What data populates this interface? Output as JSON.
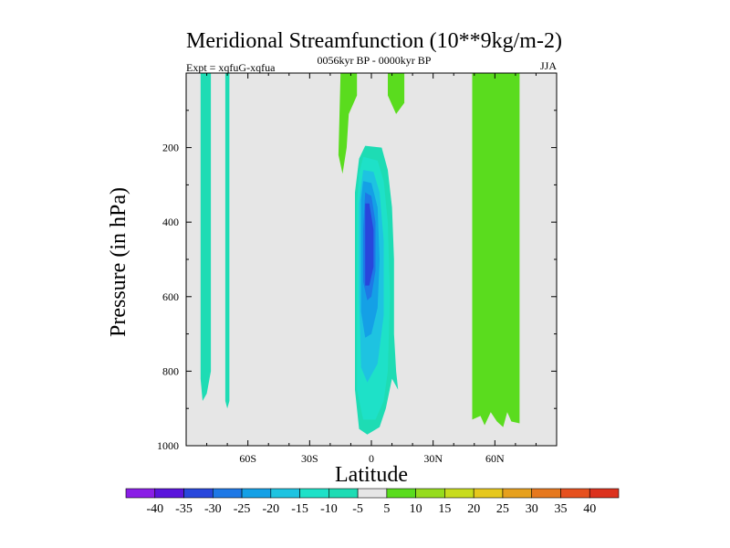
{
  "chart_data": {
    "type": "contour",
    "title": "Meridional Streamfunction (10**9kg/m-2)",
    "subtitle_left": "Expt = xqfuG-xqfua",
    "subtitle_center": "0056kyr BP - 0000kyr BP",
    "subtitle_right": "JJA",
    "xlabel": "Latitude",
    "ylabel": "Pressure (in hPa)",
    "xlim": [
      -90,
      90
    ],
    "ylim": [
      1000,
      0
    ],
    "y_inverted": true,
    "x_ticks": [
      {
        "value": -60,
        "label": "60S"
      },
      {
        "value": -30,
        "label": "30S"
      },
      {
        "value": 0,
        "label": "0"
      },
      {
        "value": 30,
        "label": "30N"
      },
      {
        "value": 60,
        "label": "60N"
      }
    ],
    "y_ticks": [
      {
        "value": 200,
        "label": "200"
      },
      {
        "value": 400,
        "label": "400"
      },
      {
        "value": 600,
        "label": "600"
      },
      {
        "value": 800,
        "label": "800"
      },
      {
        "value": 1000,
        "label": "1000"
      }
    ],
    "background_color": "#e6e6e6",
    "colorbar": {
      "levels": [
        -40,
        -35,
        -30,
        -25,
        -20,
        -15,
        -10,
        -5,
        5,
        10,
        15,
        20,
        25,
        30,
        35,
        40
      ],
      "labels": [
        "-40",
        "-35",
        "-30",
        "-25",
        "-20",
        "-15",
        "-10",
        "-5",
        "5",
        "10",
        "15",
        "20",
        "25",
        "30",
        "35",
        "40"
      ],
      "colors": [
        "#8a1ee6",
        "#5a14dc",
        "#2846dc",
        "#1e78e6",
        "#14a0e6",
        "#1ec3e1",
        "#1ee1c8",
        "#1edcb4",
        "#e6e6e6",
        "#5adc1e",
        "#96dc1e",
        "#c8dc1e",
        "#e6c81e",
        "#e6a01e",
        "#e6781e",
        "#e6501e",
        "#dc321e"
      ]
    },
    "regions": [
      {
        "name": "sh-polar-band-1",
        "value": -5,
        "color": "#1edcb4",
        "polygon": [
          [
            -83,
            0
          ],
          [
            -78,
            0
          ],
          [
            -78,
            800
          ],
          [
            -80,
            860
          ],
          [
            -82,
            880
          ],
          [
            -83,
            820
          ]
        ]
      },
      {
        "name": "sh-polar-band-2",
        "value": -5,
        "color": "#1edcb4",
        "polygon": [
          [
            -71,
            0
          ],
          [
            -69,
            0
          ],
          [
            -69,
            880
          ],
          [
            -70,
            900
          ],
          [
            -71,
            880
          ]
        ]
      },
      {
        "name": "deep-cell-minus5",
        "value": -5,
        "color": "#1edcb4",
        "polygon": [
          [
            -3,
            195
          ],
          [
            5,
            200
          ],
          [
            8,
            260
          ],
          [
            10,
            360
          ],
          [
            11,
            500
          ],
          [
            11,
            700
          ],
          [
            12,
            800
          ],
          [
            13,
            850
          ],
          [
            10,
            820
          ],
          [
            7,
            900
          ],
          [
            4,
            950
          ],
          [
            -2,
            970
          ],
          [
            -6,
            955
          ],
          [
            -8,
            850
          ],
          [
            -8,
            700
          ],
          [
            -8,
            500
          ],
          [
            -8,
            320
          ],
          [
            -6,
            230
          ]
        ]
      },
      {
        "name": "deep-cell-minus10",
        "value": -10,
        "color": "#1ee1c8",
        "polygon": [
          [
            -4,
            225
          ],
          [
            3,
            235
          ],
          [
            6,
            290
          ],
          [
            8,
            400
          ],
          [
            9,
            600
          ],
          [
            8,
            800
          ],
          [
            6,
            880
          ],
          [
            2,
            930
          ],
          [
            -4,
            930
          ],
          [
            -7,
            850
          ],
          [
            -7,
            600
          ],
          [
            -7,
            350
          ],
          [
            -6,
            270
          ]
        ]
      },
      {
        "name": "deep-cell-minus15",
        "value": -15,
        "color": "#1ec3e1",
        "polygon": [
          [
            -4,
            260
          ],
          [
            1,
            265
          ],
          [
            4,
            320
          ],
          [
            6,
            450
          ],
          [
            6,
            650
          ],
          [
            3,
            780
          ],
          [
            -2,
            830
          ],
          [
            -5,
            790
          ],
          [
            -6,
            600
          ],
          [
            -6,
            350
          ]
        ]
      },
      {
        "name": "deep-cell-minus20",
        "value": -20,
        "color": "#14a0e6",
        "polygon": [
          [
            -4,
            290
          ],
          [
            0,
            295
          ],
          [
            3,
            360
          ],
          [
            4,
            500
          ],
          [
            3,
            630
          ],
          [
            0,
            700
          ],
          [
            -3,
            710
          ],
          [
            -5,
            640
          ],
          [
            -5,
            450
          ],
          [
            -5,
            340
          ]
        ]
      },
      {
        "name": "deep-cell-minus25",
        "value": -25,
        "color": "#1e78e6",
        "polygon": [
          [
            -3,
            320
          ],
          [
            0,
            330
          ],
          [
            2,
            400
          ],
          [
            2,
            530
          ],
          [
            0,
            600
          ],
          [
            -2,
            610
          ],
          [
            -4,
            560
          ],
          [
            -4,
            420
          ]
        ]
      },
      {
        "name": "deep-cell-minus30",
        "value": -30,
        "color": "#2846dc",
        "polygon": [
          [
            -3,
            350
          ],
          [
            -1,
            350
          ],
          [
            1,
            420
          ],
          [
            1,
            520
          ],
          [
            -1,
            570
          ],
          [
            -3,
            570
          ],
          [
            -3,
            480
          ]
        ]
      },
      {
        "name": "upper-band-plus5-left",
        "value": 5,
        "color": "#5adc1e",
        "polygon": [
          [
            -15,
            0
          ],
          [
            -7,
            0
          ],
          [
            -7,
            60
          ],
          [
            -11,
            110
          ],
          [
            -12,
            200
          ],
          [
            -14,
            270
          ],
          [
            -16,
            220
          ]
        ]
      },
      {
        "name": "upper-band-plus5-right",
        "value": 5,
        "color": "#5adc1e",
        "polygon": [
          [
            8,
            0
          ],
          [
            16,
            0
          ],
          [
            16,
            80
          ],
          [
            12,
            110
          ],
          [
            8,
            60
          ]
        ]
      },
      {
        "name": "nh-band-plus5",
        "value": 5,
        "color": "#5adc1e",
        "polygon": [
          [
            49,
            0
          ],
          [
            72,
            0
          ],
          [
            72,
            940
          ],
          [
            68,
            935
          ],
          [
            66,
            910
          ],
          [
            64,
            950
          ],
          [
            61,
            935
          ],
          [
            58,
            910
          ],
          [
            55,
            945
          ],
          [
            53,
            920
          ],
          [
            49,
            930
          ],
          [
            49,
            80
          ]
        ]
      },
      {
        "name": "nh-band-inner-plus5",
        "value": 5,
        "color": "#5adc1e",
        "polygon": [
          [
            56,
            0
          ],
          [
            71,
            0
          ],
          [
            71,
            80
          ],
          [
            70,
            250
          ],
          [
            66,
            240
          ],
          [
            58,
            220
          ],
          [
            56,
            100
          ]
        ]
      }
    ]
  }
}
